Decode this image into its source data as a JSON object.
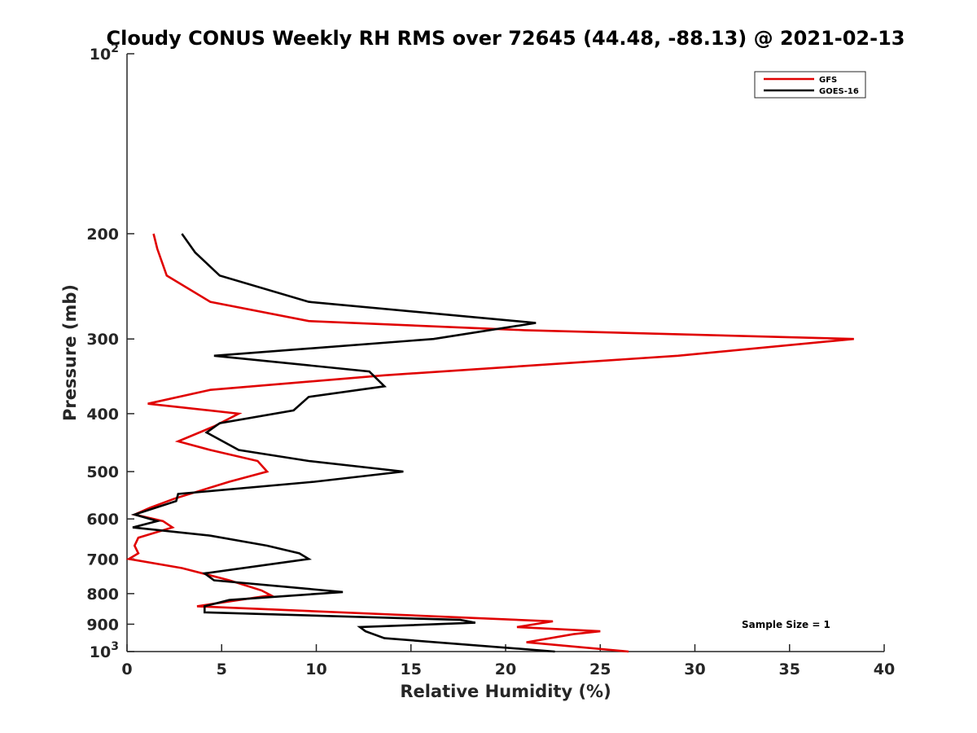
{
  "chart_data": {
    "type": "line",
    "title": "Cloudy CONUS Weekly RH RMS over 72645 (44.48, -88.13) @ 2021-02-13",
    "xlabel": "Relative Humidity (%)",
    "ylabel": "Pressure (mb)",
    "xlim": [
      0,
      40
    ],
    "ylim": [
      100,
      1000
    ],
    "y_scale": "log",
    "y_reversed": true,
    "x_ticks": [
      "0",
      "5",
      "10",
      "15",
      "20",
      "25",
      "30",
      "35",
      "40"
    ],
    "y_ticks": [
      {
        "value": 100,
        "base": "10",
        "exp": "2"
      },
      {
        "value": 200,
        "label": "200"
      },
      {
        "value": 300,
        "label": "300"
      },
      {
        "value": 400,
        "label": "400"
      },
      {
        "value": 500,
        "label": "500"
      },
      {
        "value": 600,
        "label": "600"
      },
      {
        "value": 700,
        "label": "700"
      },
      {
        "value": 800,
        "label": "800"
      },
      {
        "value": 900,
        "label": "900"
      },
      {
        "value": 1000,
        "base": "10",
        "exp": "3"
      }
    ],
    "grid": false,
    "legend_position": "top-right",
    "annotation": "Sample Size = 1",
    "series": [
      {
        "name": "GFS",
        "color": "#e00000",
        "points": [
          [
            1.4,
            200
          ],
          [
            1.6,
            212
          ],
          [
            2.1,
            235
          ],
          [
            4.4,
            260
          ],
          [
            9.6,
            280
          ],
          [
            21,
            290
          ],
          [
            38.4,
            300
          ],
          [
            29.1,
            320
          ],
          [
            13.6,
            345
          ],
          [
            4.4,
            365
          ],
          [
            1.1,
            385
          ],
          [
            5.9,
            400
          ],
          [
            4.6,
            420
          ],
          [
            2.7,
            445
          ],
          [
            4.4,
            460
          ],
          [
            6.9,
            480
          ],
          [
            7.4,
            500
          ],
          [
            5.4,
            520
          ],
          [
            2.5,
            555
          ],
          [
            1.2,
            575
          ],
          [
            0.4,
            590
          ],
          [
            1.9,
            605
          ],
          [
            2.4,
            620
          ],
          [
            0.6,
            645
          ],
          [
            0.4,
            665
          ],
          [
            0.6,
            685
          ],
          [
            0.1,
            700
          ],
          [
            2.9,
            725
          ],
          [
            5.4,
            760
          ],
          [
            7.1,
            790
          ],
          [
            7.6,
            805
          ],
          [
            3.7,
            840
          ],
          [
            22.5,
            890
          ],
          [
            20.6,
            910
          ],
          [
            25,
            925
          ],
          [
            23.6,
            935
          ],
          [
            21.1,
            965
          ],
          [
            26.5,
            1000
          ]
        ]
      },
      {
        "name": "GOES-16",
        "color": "#000000",
        "points": [
          [
            2.9,
            200
          ],
          [
            3.6,
            215
          ],
          [
            4.9,
            235
          ],
          [
            9.6,
            260
          ],
          [
            21.6,
            282
          ],
          [
            16.2,
            300
          ],
          [
            4.6,
            320
          ],
          [
            12.8,
            340
          ],
          [
            13.6,
            360
          ],
          [
            9.6,
            375
          ],
          [
            8.8,
            395
          ],
          [
            4.9,
            415
          ],
          [
            4.2,
            430
          ],
          [
            5.9,
            460
          ],
          [
            9.6,
            480
          ],
          [
            14.6,
            500
          ],
          [
            9.9,
            520
          ],
          [
            2.7,
            545
          ],
          [
            2.6,
            560
          ],
          [
            0.4,
            590
          ],
          [
            1.6,
            605
          ],
          [
            0.3,
            620
          ],
          [
            4.4,
            640
          ],
          [
            7.4,
            665
          ],
          [
            9.1,
            685
          ],
          [
            9.6,
            700
          ],
          [
            4.1,
            740
          ],
          [
            4.6,
            760
          ],
          [
            11.4,
            795
          ],
          [
            5.4,
            820
          ],
          [
            4.1,
            840
          ],
          [
            4.1,
            860
          ],
          [
            17.6,
            885
          ],
          [
            18.4,
            895
          ],
          [
            12.3,
            910
          ],
          [
            12.6,
            925
          ],
          [
            13.6,
            950
          ],
          [
            22.6,
            1000
          ]
        ]
      }
    ]
  }
}
